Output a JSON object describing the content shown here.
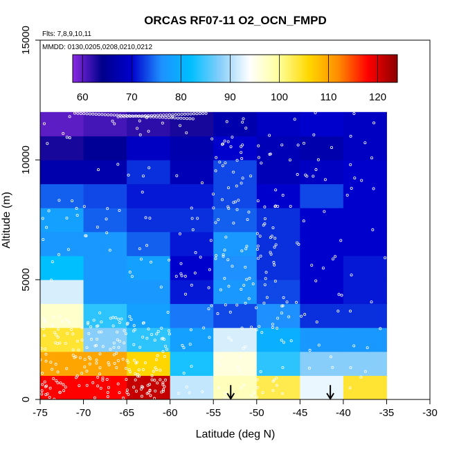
{
  "chart_data": {
    "type": "heatmap",
    "title": "ORCAS RF07-11 O2_OCN_FMPD",
    "flights_note": "Flts: 7,8,9,10,11",
    "dates_note": "MMDD: 0130,0205,0208,0210,0212",
    "xlabel": "Latitude (deg N)",
    "ylabel": "Altitude (m)",
    "xlim": [
      -75,
      -30
    ],
    "ylim": [
      0,
      15000
    ],
    "x_ticks": [
      -75,
      -70,
      -65,
      -60,
      -55,
      -50,
      -45,
      -40,
      -35,
      -30
    ],
    "y_ticks": [
      0,
      5000,
      10000,
      15000
    ],
    "colorbar": {
      "range": [
        58,
        124
      ],
      "ticks": [
        60,
        70,
        80,
        90,
        100,
        110,
        120
      ],
      "stops": [
        "#8a2be2",
        "#00008b",
        "#0000cd",
        "#1e90ff",
        "#00bfff",
        "#87cefa",
        "#ffffff",
        "#ffff99",
        "#ffd700",
        "#ff8c00",
        "#ff0000",
        "#8b0000"
      ]
    },
    "lat_edges": [
      -75,
      -70,
      -65,
      -60,
      -55,
      -50,
      -45,
      -40,
      -35
    ],
    "alt_bin_height": 1000,
    "rows": [
      {
        "alt_min": 0,
        "values": [
          118,
          118,
          121,
          91,
          98,
          103,
          93,
          104
        ]
      },
      {
        "alt_min": 1000,
        "values": [
          110,
          110,
          106,
          83,
          96,
          84,
          88,
          88
        ]
      },
      {
        "alt_min": 2000,
        "values": [
          104,
          88,
          84,
          78,
          92,
          80,
          77,
          77
        ]
      },
      {
        "alt_min": 3000,
        "values": [
          97,
          84,
          78,
          75,
          73,
          76,
          72,
          72
        ]
      },
      {
        "alt_min": 4000,
        "values": [
          92,
          77,
          77,
          71,
          77,
          73,
          70,
          71
        ]
      },
      {
        "alt_min": 5000,
        "values": [
          82,
          77,
          78,
          70,
          76,
          72,
          70,
          71
        ]
      },
      {
        "alt_min": 6000,
        "values": [
          77,
          77,
          74,
          71,
          77,
          72,
          70,
          70
        ]
      },
      {
        "alt_min": 7000,
        "values": [
          78,
          74,
          72,
          72,
          74,
          72,
          70,
          70
        ]
      },
      {
        "alt_min": 8000,
        "values": [
          74,
          73,
          71,
          71,
          73,
          70,
          73,
          70
        ]
      },
      {
        "alt_min": 9000,
        "values": [
          67,
          67,
          72,
          68,
          73,
          68,
          69,
          70
        ]
      },
      {
        "alt_min": 10000,
        "values": [
          63,
          65,
          69,
          67,
          70,
          68,
          67,
          69
        ]
      },
      {
        "alt_min": 11000,
        "values": [
          60,
          61,
          62,
          63,
          67,
          69,
          70,
          69
        ]
      }
    ],
    "markers": [
      {
        "label": "arrow",
        "lat": -53
      },
      {
        "label": "arrow",
        "lat": -41.5
      }
    ],
    "grid": false
  },
  "colors": {
    "background": "#ffffff",
    "axis": "#000000",
    "points": "#ffffff"
  }
}
